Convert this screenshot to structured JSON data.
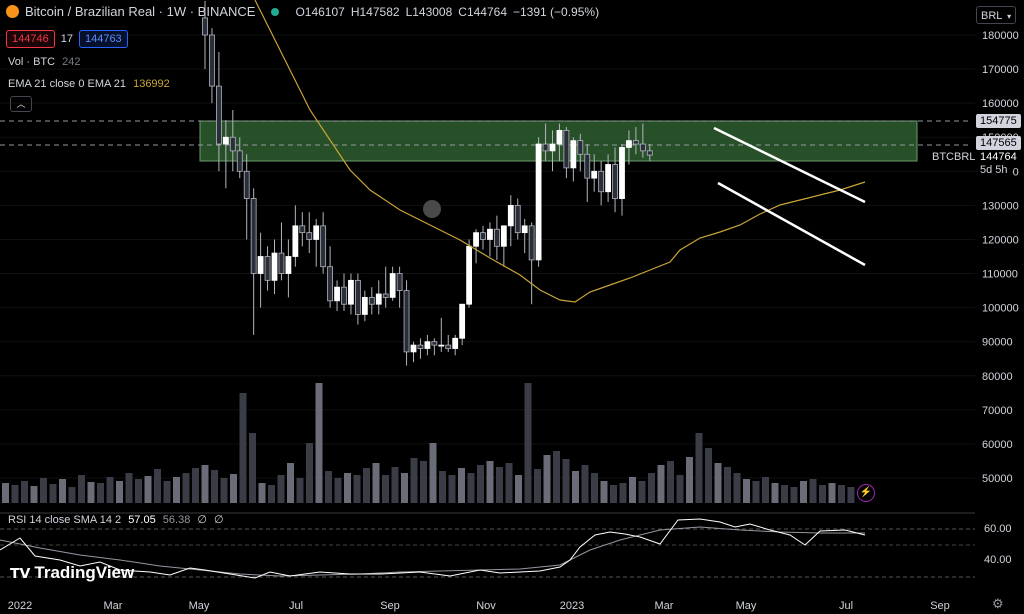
{
  "header": {
    "symbol_title": "Bitcoin / Brazilian Real · 1W · BINANCE",
    "ohlc": {
      "o": "O146107",
      "h": "H147582",
      "l": "L143008",
      "c": "C144764",
      "chg": "−1391 (−0.95%)"
    },
    "bid": "144746",
    "spread": "17",
    "ask": "144763",
    "volume_label": "Vol · BTC",
    "volume_value": "242",
    "ema_label": "EMA 21 close 0 EMA 21",
    "ema_value": "136992",
    "currency_button": "BRL"
  },
  "price_axis": {
    "ticks": [
      180000,
      170000,
      160000,
      150000,
      140000,
      130000,
      120000,
      110000,
      100000,
      90000,
      80000,
      70000,
      60000,
      50000
    ],
    "labels": [
      "180000",
      "170000",
      "160000",
      "150000",
      "140000",
      "130000",
      "120000",
      "110000",
      "100000",
      "90000",
      "80000",
      "70000",
      "60000",
      "50000"
    ],
    "tag_top": "154775",
    "tag_mid": "147565",
    "symbol_tag": "BTCBRL",
    "last_price": "144764",
    "countdown": "5d 5h"
  },
  "time_axis": {
    "labels": [
      "2022",
      "Mar",
      "May",
      "Jul",
      "Sep",
      "Nov",
      "2023",
      "Mar",
      "May",
      "Jul",
      "Sep"
    ]
  },
  "rsi": {
    "label": "RSI 14 close SMA 14 2",
    "value": "57.05",
    "sma_value": "56.38",
    "extra1": "∅",
    "extra2": "∅",
    "ticks": [
      "60.00",
      "40.00"
    ]
  },
  "branding": {
    "logo_text": "TradingView"
  },
  "colors": {
    "bull": "#ffffff",
    "bear": "#2a2e39",
    "wick": "#b2b5be",
    "ema": "#c9a437",
    "zone_fill": "#2e5e30",
    "zone_border": "#6b9b6b",
    "channel": "#ffffff",
    "bid": "#f23645",
    "ask": "#2962ff",
    "rsi_line": "#ffffff",
    "rsi_sma": "#9598a1"
  },
  "chart_data": {
    "type": "candlestick",
    "x": [
      "2022",
      "Mar",
      "May",
      "Jul",
      "Sep",
      "Nov",
      "2023",
      "Mar",
      "May",
      "Jul",
      "Sep"
    ],
    "ylim": [
      44000,
      190000
    ],
    "series": [
      {
        "name": "BTCBRL",
        "ohlc": [
          [
            null,
            null,
            null,
            null
          ],
          [
            null,
            null,
            null,
            null
          ],
          [
            null,
            null,
            null,
            null
          ],
          [
            null,
            null,
            null,
            null
          ],
          [
            null,
            null,
            null,
            null
          ],
          [
            null,
            null,
            null,
            null
          ],
          [
            null,
            null,
            null,
            null
          ],
          [
            null,
            null,
            null,
            null
          ],
          [
            null,
            null,
            null,
            null
          ],
          [
            null,
            null,
            null,
            null
          ],
          [
            null,
            null,
            null,
            null
          ],
          [
            null,
            null,
            null,
            null
          ],
          [
            null,
            null,
            null,
            null
          ],
          [
            null,
            null,
            null,
            null
          ],
          [
            null,
            null,
            null,
            null
          ],
          [
            null,
            null,
            null,
            null
          ],
          [
            null,
            null,
            null,
            null
          ],
          [
            null,
            null,
            null,
            null
          ],
          [
            null,
            null,
            null,
            null
          ],
          [
            null,
            null,
            null,
            null
          ],
          [
            null,
            null,
            null,
            null
          ],
          [
            null,
            null,
            null,
            null
          ],
          [
            null,
            null,
            null,
            null
          ],
          [
            null,
            null,
            null,
            null
          ],
          [
            null,
            null,
            null,
            null
          ],
          [
            185000,
            190000,
            170000,
            180000
          ],
          [
            180000,
            182000,
            160000,
            165000
          ],
          [
            165000,
            175000,
            140000,
            148000
          ],
          [
            148000,
            155000,
            135000,
            150000
          ],
          [
            150000,
            158000,
            140000,
            146000
          ],
          [
            146000,
            150000,
            138000,
            140000
          ],
          [
            140000,
            145000,
            120000,
            132000
          ],
          [
            132000,
            135000,
            92000,
            110000
          ],
          [
            110000,
            122000,
            100000,
            115000
          ],
          [
            115000,
            118000,
            105000,
            108000
          ],
          [
            108000,
            120000,
            104000,
            116000
          ],
          [
            116000,
            125000,
            108000,
            110000
          ],
          [
            110000,
            120000,
            103000,
            115000
          ],
          [
            115000,
            130000,
            112000,
            124000
          ],
          [
            124000,
            128000,
            118000,
            122000
          ],
          [
            122000,
            128000,
            116000,
            120000
          ],
          [
            120000,
            126000,
            112000,
            124000
          ],
          [
            124000,
            128000,
            110000,
            112000
          ],
          [
            112000,
            118000,
            100000,
            102000
          ],
          [
            102000,
            108000,
            99000,
            106000
          ],
          [
            106000,
            110000,
            99000,
            101000
          ],
          [
            101000,
            110000,
            98000,
            108000
          ],
          [
            108000,
            110000,
            95000,
            98000
          ],
          [
            98000,
            105000,
            96000,
            103000
          ],
          [
            103000,
            106000,
            98000,
            101000
          ],
          [
            101000,
            108000,
            98000,
            104000
          ],
          [
            104000,
            112000,
            100000,
            103000
          ],
          [
            103000,
            112000,
            102000,
            110000
          ],
          [
            110000,
            112000,
            100000,
            105000
          ],
          [
            105000,
            108000,
            83000,
            87000
          ],
          [
            87000,
            90000,
            84000,
            89000
          ],
          [
            89000,
            91000,
            85000,
            88000
          ],
          [
            88000,
            92000,
            86000,
            90000
          ],
          [
            90000,
            91000,
            86000,
            89000
          ],
          [
            89000,
            97000,
            87000,
            89000
          ],
          [
            89000,
            92000,
            87000,
            88000
          ],
          [
            88000,
            92000,
            86000,
            91000
          ],
          [
            91000,
            100000,
            89000,
            101000
          ],
          [
            101000,
            120000,
            100000,
            118000
          ],
          [
            118000,
            123000,
            113000,
            122000
          ],
          [
            122000,
            124000,
            117000,
            120000
          ],
          [
            120000,
            125000,
            115000,
            123000
          ],
          [
            123000,
            127000,
            114000,
            118000
          ],
          [
            118000,
            124000,
            112000,
            124000
          ],
          [
            124000,
            133000,
            118000,
            130000
          ],
          [
            130000,
            132000,
            120000,
            122000
          ],
          [
            122000,
            126000,
            116000,
            124000
          ],
          [
            124000,
            125000,
            101000,
            114000
          ],
          [
            114000,
            150000,
            112000,
            148000
          ],
          [
            148000,
            154000,
            143000,
            146000
          ],
          [
            146000,
            152000,
            140000,
            148000
          ],
          [
            148000,
            154000,
            143000,
            152000
          ],
          [
            152000,
            153000,
            138000,
            141000
          ],
          [
            141000,
            150000,
            137000,
            149000
          ],
          [
            149000,
            151000,
            140000,
            145000
          ],
          [
            145000,
            148000,
            131000,
            138000
          ],
          [
            138000,
            145000,
            134000,
            140000
          ],
          [
            140000,
            143000,
            130000,
            134000
          ],
          [
            134000,
            145000,
            131000,
            142000
          ],
          [
            142000,
            147000,
            128000,
            132000
          ],
          [
            132000,
            148000,
            127000,
            147000
          ],
          [
            147000,
            152000,
            142000,
            149000
          ],
          [
            149000,
            153000,
            145000,
            148000
          ],
          [
            148000,
            154000,
            144000,
            146000
          ],
          [
            146000,
            148000,
            143000,
            144764
          ]
        ]
      }
    ]
  }
}
